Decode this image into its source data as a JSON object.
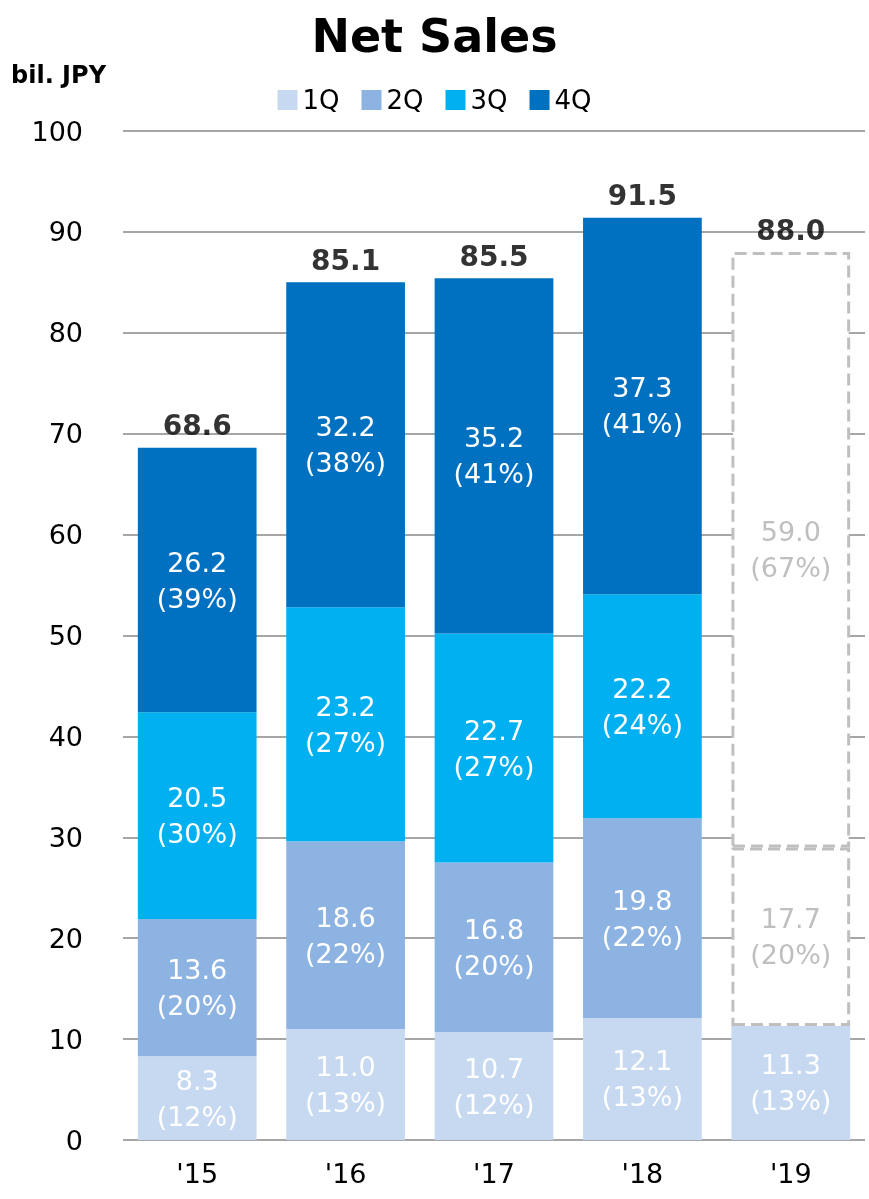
{
  "chart_data": {
    "type": "bar",
    "title": "Net Sales",
    "ylabel": "bil. JPY",
    "categories": [
      "'15",
      "'16",
      "'17",
      "'18",
      "'19"
    ],
    "series": [
      {
        "name": "1Q",
        "color": "#c6d9f1",
        "values": [
          8.3,
          11.0,
          10.7,
          12.1,
          11.3
        ],
        "value_labels": [
          "8.3\n(12%)",
          "11.0\n(13%)",
          "10.7\n(12%)",
          "12.1\n(13%)",
          "11.3\n(13%)"
        ]
      },
      {
        "name": "2Q",
        "color": "#8db3e2",
        "values": [
          13.6,
          18.6,
          16.8,
          19.8,
          null
        ],
        "value_labels": [
          "13.6\n(20%)",
          "18.6\n(22%)",
          "16.8\n(20%)",
          "19.8\n(22%)",
          null
        ]
      },
      {
        "name": "3Q",
        "color": "#00b0f0",
        "values": [
          20.5,
          23.2,
          22.7,
          22.2,
          null
        ],
        "value_labels": [
          "20.5\n(30%)",
          "23.2\n(27%)",
          "22.7\n(27%)",
          "22.2\n(24%)",
          null
        ]
      },
      {
        "name": "4Q",
        "color": "#0070c0",
        "values": [
          26.2,
          32.2,
          35.2,
          37.3,
          null
        ],
        "value_labels": [
          "26.2\n(39%)",
          "32.2\n(38%)",
          "35.2\n(41%)",
          "37.3\n(41%)",
          null
        ]
      },
      {
        "color": "#bfbfbf",
        "line_style": "dashed",
        "values": [
          null,
          null,
          null,
          null,
          17.7
        ],
        "value_labels": [
          null,
          null,
          null,
          null,
          "17.7\n(20%)"
        ]
      },
      {
        "color": "#bfbfbf",
        "line_style": "dashed",
        "values": [
          null,
          null,
          null,
          null,
          59.0
        ],
        "value_labels": [
          null,
          null,
          null,
          null,
          "59.0\n(67%)"
        ]
      }
    ],
    "stacked": true,
    "totals": [
      "68.6",
      "85.1",
      "85.5",
      "91.5",
      "88.0"
    ],
    "ylim": [
      0,
      100
    ],
    "yticks": [
      0,
      10,
      20,
      30,
      40,
      50,
      60,
      70,
      80,
      90,
      100
    ],
    "grid": "y",
    "legend": "top"
  }
}
